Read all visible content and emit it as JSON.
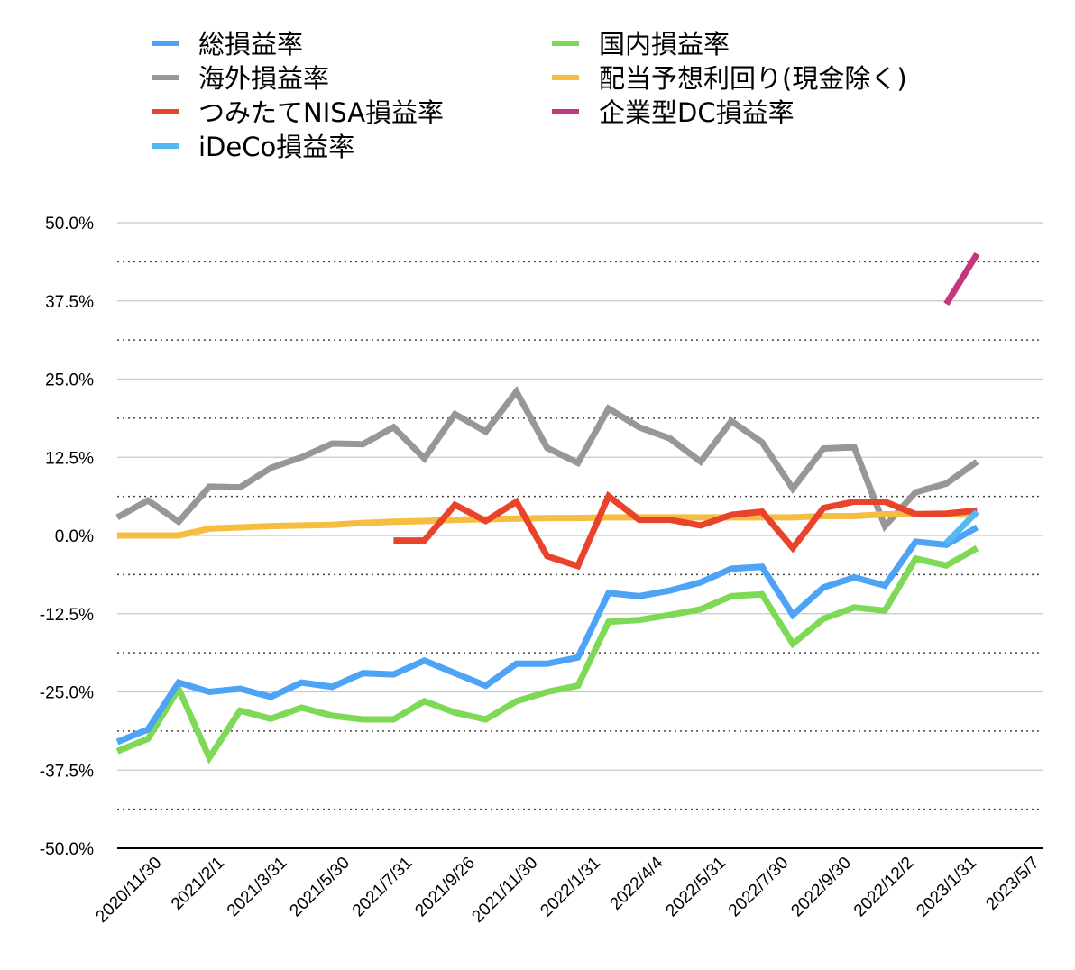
{
  "chart_data": {
    "type": "line",
    "title": "",
    "xlabel": "",
    "ylabel": "",
    "ylim": [
      -50,
      50
    ],
    "yticks": [
      "50.0%",
      "37.5%",
      "25.0%",
      "12.5%",
      "0.0%",
      "-12.5%",
      "-25.0%",
      "-37.5%",
      "-50.0%"
    ],
    "xticks": [
      "2020/11/30",
      "2021/2/1",
      "2021/3/31",
      "2021/5/30",
      "2021/7/31",
      "2021/9/26",
      "2021/11/30",
      "2022/1/31",
      "2022/4/4",
      "2022/5/31",
      "2022/7/30",
      "2022/9/30",
      "2022/12/2",
      "2023/1/31",
      "2023/5/7"
    ],
    "grid": {
      "major": "solid",
      "minor": "dotted"
    },
    "legend_position": "top",
    "series": [
      {
        "name": "総損益率",
        "color": "#4DA3F5",
        "values": [
          -33,
          -31,
          -23.5,
          -25,
          -24.5,
          -25.8,
          -23.5,
          -24.2,
          -22,
          -22.2,
          -20,
          -22,
          -24,
          -20.5,
          -20.5,
          -19.5,
          -9.2,
          -9.7,
          -8.8,
          -7.5,
          -5.3,
          -5,
          -12.7,
          -8.3,
          -6.7,
          -8,
          -1,
          -1.5,
          1.3
        ]
      },
      {
        "name": "国内損益率",
        "color": "#7ED957",
        "values": [
          -34.5,
          -32.5,
          -24.5,
          -35.5,
          -28,
          -29.3,
          -27.5,
          -28.8,
          -29.4,
          -29.4,
          -26.5,
          -28.3,
          -29.4,
          -26.5,
          -25,
          -24,
          -13.8,
          -13.5,
          -12.7,
          -11.8,
          -9.7,
          -9.4,
          -17.3,
          -13.3,
          -11.5,
          -12,
          -3.7,
          -4.8,
          -2
        ]
      },
      {
        "name": "海外損益率",
        "color": "#979797",
        "values": [
          2.9,
          5.6,
          2.2,
          7.8,
          7.7,
          10.8,
          12.5,
          14.7,
          14.6,
          17.3,
          12.3,
          19.4,
          16.6,
          23,
          14,
          11.6,
          20.3,
          17.3,
          15.5,
          11.8,
          18.3,
          14.9,
          7.5,
          13.9,
          14.1,
          1.5,
          6.9,
          8.3,
          11.8
        ]
      },
      {
        "name": "配当予想利回り(現金除く)",
        "color": "#F5BE41",
        "values": [
          0,
          0,
          0,
          1.1,
          1.3,
          1.5,
          1.6,
          1.7,
          2,
          2.2,
          2.3,
          2.5,
          2.6,
          2.7,
          2.8,
          2.8,
          2.9,
          2.9,
          2.9,
          2.9,
          2.9,
          2.9,
          2.9,
          3.1,
          3.1,
          3.4,
          3.4,
          3.4,
          3.3
        ]
      },
      {
        "name": "つみたてNISA損益率",
        "color": "#E9432B",
        "values": [
          null,
          null,
          null,
          null,
          null,
          null,
          null,
          null,
          null,
          -0.8,
          -0.8,
          4.9,
          2.3,
          5.4,
          -3.3,
          -4.9,
          6.3,
          2.5,
          2.5,
          1.6,
          3.3,
          3.8,
          -2,
          4.4,
          5.4,
          5.4,
          3.4,
          3.5,
          4
        ]
      },
      {
        "name": "企業型DC損益率",
        "color": "#C3387D",
        "values": [
          null,
          null,
          null,
          null,
          null,
          null,
          null,
          null,
          null,
          null,
          null,
          null,
          null,
          null,
          null,
          null,
          null,
          null,
          null,
          null,
          null,
          null,
          null,
          null,
          null,
          null,
          null,
          37,
          45
        ]
      },
      {
        "name": "iDeCo損益率",
        "color": "#54B9F2",
        "values": [
          null,
          null,
          null,
          null,
          null,
          null,
          null,
          null,
          null,
          null,
          null,
          null,
          null,
          null,
          null,
          null,
          null,
          null,
          null,
          null,
          null,
          null,
          null,
          null,
          null,
          null,
          null,
          -1.2,
          3.8
        ]
      }
    ],
    "legend": [
      {
        "label": "総損益率",
        "series": 0
      },
      {
        "label": "国内損益率",
        "series": 1
      },
      {
        "label": "海外損益率",
        "series": 2
      },
      {
        "label": "配当予想利回り(現金除く)",
        "series": 3
      },
      {
        "label": "つみたてNISA損益率",
        "series": 4
      },
      {
        "label": "企業型DC損益率",
        "series": 5
      },
      {
        "label": "iDeCo損益率",
        "series": 6
      }
    ]
  }
}
